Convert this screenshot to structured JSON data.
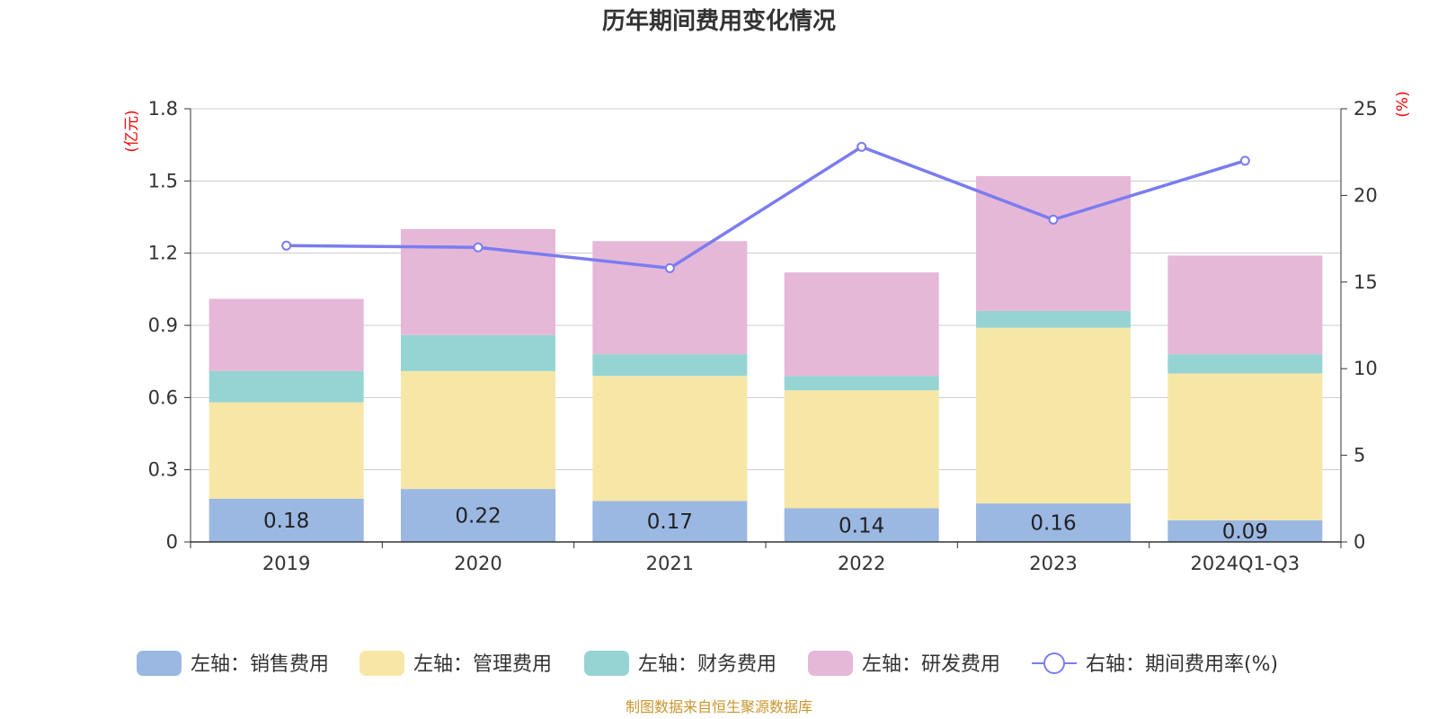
{
  "title": "历年期间费用变化情况",
  "source": "制图数据来自恒生聚源数据库",
  "colors": {
    "sales": "#9bb8e3",
    "admin": "#f7e7a7",
    "finance": "#96d4d4",
    "rd": "#e6b8d8",
    "line": "#7b7cf0",
    "grid": "#cccccc",
    "axis": "#333333",
    "unit": "#ff0000"
  },
  "chart_data": {
    "type": "bar",
    "stacked": true,
    "categories": [
      "2019",
      "2020",
      "2021",
      "2022",
      "2023",
      "2024Q1-Q3"
    ],
    "left_axis": {
      "unit_label": "(亿元)",
      "ylim": [
        0,
        1.8
      ],
      "ticks": [
        0,
        0.3,
        0.6,
        0.9,
        1.2,
        1.5,
        1.8
      ],
      "tick_labels": [
        "0",
        "0.3",
        "0.6",
        "0.9",
        "1.2",
        "1.5",
        "1.8"
      ]
    },
    "right_axis": {
      "unit_label": "(%)",
      "ylim": [
        0,
        25
      ],
      "ticks": [
        0,
        5,
        10,
        15,
        20,
        25
      ],
      "tick_labels": [
        "0",
        "5",
        "10",
        "15",
        "20",
        "25"
      ]
    },
    "series": [
      {
        "name": "左轴：销售费用",
        "key": "sales",
        "axis": "left",
        "values": [
          0.18,
          0.22,
          0.17,
          0.14,
          0.16,
          0.09
        ],
        "labels": [
          "0.18",
          "0.22",
          "0.17",
          "0.14",
          "0.16",
          "0.09"
        ]
      },
      {
        "name": "左轴：管理费用",
        "key": "admin",
        "axis": "left",
        "values": [
          0.4,
          0.49,
          0.52,
          0.49,
          0.73,
          0.61
        ]
      },
      {
        "name": "左轴：财务费用",
        "key": "finance",
        "axis": "left",
        "values": [
          0.13,
          0.15,
          0.09,
          0.06,
          0.07,
          0.08
        ]
      },
      {
        "name": "左轴：研发费用",
        "key": "rd",
        "axis": "left",
        "values": [
          0.3,
          0.44,
          0.47,
          0.43,
          0.56,
          0.41
        ]
      }
    ],
    "line_series": {
      "name": "右轴：期间费用率(%)",
      "key": "line",
      "axis": "right",
      "values": [
        17.1,
        17.0,
        15.8,
        22.8,
        18.6,
        22.0
      ]
    },
    "grid": true,
    "legend_position": "bottom"
  }
}
